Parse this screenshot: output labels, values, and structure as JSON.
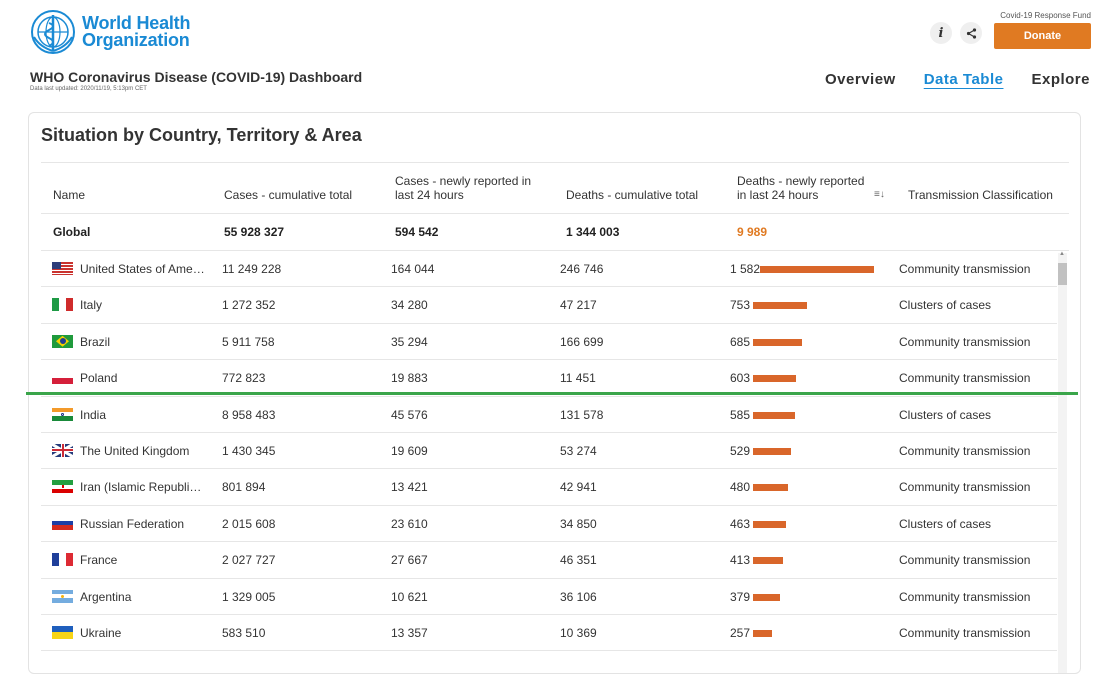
{
  "header": {
    "org_name_line1": "World Health",
    "org_name_line2": "Organization",
    "fund_label": "Covid-19 Response Fund",
    "donate_label": "Donate",
    "info_glyph": "i",
    "share_glyph": "<"
  },
  "dashboard": {
    "title": "WHO Coronavirus Disease (COVID-19) Dashboard",
    "updated": "Data last updated: 2020/11/19, 5:13pm CET"
  },
  "nav": {
    "tabs": [
      {
        "label": "Overview",
        "active": false
      },
      {
        "label": "Data Table",
        "active": true
      },
      {
        "label": "Explore",
        "active": false
      }
    ]
  },
  "table": {
    "title": "Situation by Country, Territory & Area",
    "columns": {
      "name": "Name",
      "cases_total": "Cases - cumulative total",
      "cases_new": "Cases - newly reported in last 24 hours",
      "deaths_total": "Deaths - cumulative total",
      "deaths_new": "Deaths - newly reported in last 24 hours",
      "transmission": "Transmission Classification"
    },
    "sort_icon": "sort-descending-icon",
    "global": {
      "name": "Global",
      "cases_total": "55 928 327",
      "cases_new": "594 542",
      "deaths_total": "1 344 003",
      "deaths_new": "9 989"
    },
    "rows": [
      {
        "name": "United States of Ame…",
        "flag": "us-flag-icon",
        "cases_total": "11 249 228",
        "cases_new": "164 044",
        "deaths_total": "246 746",
        "deaths_new": "1 582",
        "deaths_new_value": 1582,
        "transmission": "Community transmission"
      },
      {
        "name": "Italy",
        "flag": "italy-flag-icon",
        "cases_total": "1 272 352",
        "cases_new": "34 280",
        "deaths_total": "47 217",
        "deaths_new": "753",
        "deaths_new_value": 753,
        "transmission": "Clusters of cases"
      },
      {
        "name": "Brazil",
        "flag": "brazil-flag-icon",
        "cases_total": "5 911 758",
        "cases_new": "35 294",
        "deaths_total": "166 699",
        "deaths_new": "685",
        "deaths_new_value": 685,
        "transmission": "Community transmission"
      },
      {
        "name": "Poland",
        "flag": "poland-flag-icon",
        "cases_total": "772 823",
        "cases_new": "19 883",
        "deaths_total": "11 451",
        "deaths_new": "603",
        "deaths_new_value": 603,
        "transmission": "Community transmission"
      },
      {
        "name": "India",
        "flag": "india-flag-icon",
        "cases_total": "8 958 483",
        "cases_new": "45 576",
        "deaths_total": "131 578",
        "deaths_new": "585",
        "deaths_new_value": 585,
        "transmission": "Clusters of cases"
      },
      {
        "name": "The United Kingdom",
        "flag": "uk-flag-icon",
        "cases_total": "1 430 345",
        "cases_new": "19 609",
        "deaths_total": "53 274",
        "deaths_new": "529",
        "deaths_new_value": 529,
        "transmission": "Community transmission"
      },
      {
        "name": "Iran (Islamic Republi…",
        "flag": "iran-flag-icon",
        "cases_total": "801 894",
        "cases_new": "13 421",
        "deaths_total": "42 941",
        "deaths_new": "480",
        "deaths_new_value": 480,
        "transmission": "Community transmission"
      },
      {
        "name": "Russian Federation",
        "flag": "russia-flag-icon",
        "cases_total": "2 015 608",
        "cases_new": "23 610",
        "deaths_total": "34 850",
        "deaths_new": "463",
        "deaths_new_value": 463,
        "transmission": "Clusters of cases"
      },
      {
        "name": "France",
        "flag": "france-flag-icon",
        "cases_total": "2 027 727",
        "cases_new": "27 667",
        "deaths_total": "46 351",
        "deaths_new": "413",
        "deaths_new_value": 413,
        "transmission": "Community transmission"
      },
      {
        "name": "Argentina",
        "flag": "argentina-flag-icon",
        "cases_total": "1 329 005",
        "cases_new": "10 621",
        "deaths_total": "36 106",
        "deaths_new": "379",
        "deaths_new_value": 379,
        "transmission": "Community transmission"
      },
      {
        "name": "Ukraine",
        "flag": "ukraine-flag-icon",
        "cases_total": "583 510",
        "cases_new": "13 357",
        "deaths_total": "10 369",
        "deaths_new": "257",
        "deaths_new_value": 257,
        "transmission": "Community transmission"
      }
    ]
  },
  "colors": {
    "accent_blue": "#1a8ad4",
    "donate_orange": "#e07a22",
    "bar_orange": "#d9662a",
    "divider_green": "#3aa54a"
  }
}
